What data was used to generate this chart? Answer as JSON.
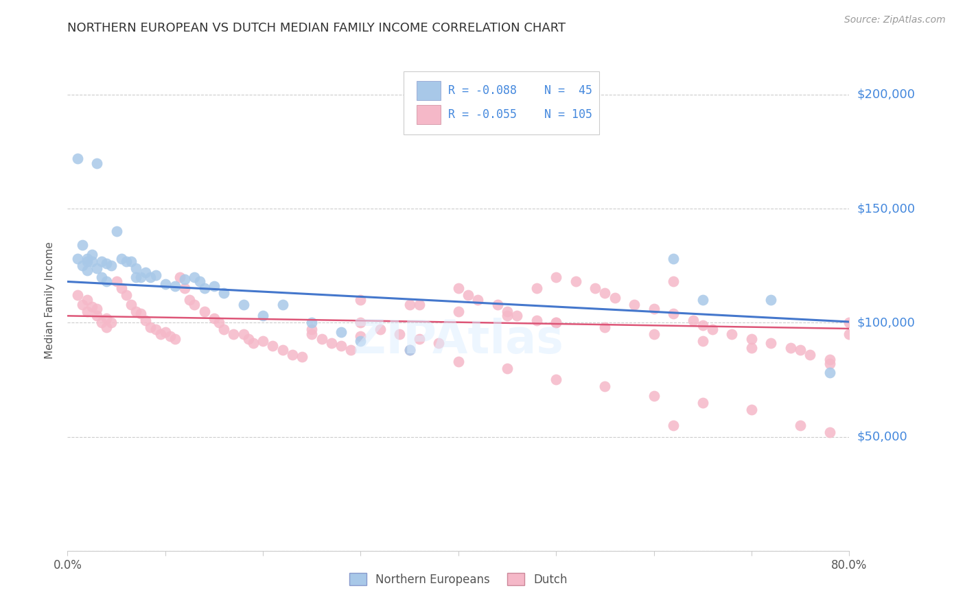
{
  "title": "NORTHERN EUROPEAN VS DUTCH MEDIAN FAMILY INCOME CORRELATION CHART",
  "source": "Source: ZipAtlas.com",
  "ylabel": "Median Family Income",
  "xmin": 0.0,
  "xmax": 0.8,
  "ymin": 0,
  "ymax": 220000,
  "yticks": [
    0,
    50000,
    100000,
    150000,
    200000
  ],
  "ytick_labels": [
    "",
    "$50,000",
    "$100,000",
    "$150,000",
    "$200,000"
  ],
  "xticks": [
    0.0,
    0.1,
    0.2,
    0.3,
    0.4,
    0.5,
    0.6,
    0.7,
    0.8
  ],
  "xtick_labels": [
    "0.0%",
    "",
    "",
    "",
    "",
    "",
    "",
    "",
    "80.0%"
  ],
  "blue_color": "#a8c8e8",
  "pink_color": "#f5b8c8",
  "blue_line_color": "#4477cc",
  "pink_line_color": "#dd5577",
  "label_color": "#4488dd",
  "grid_color": "#cccccc",
  "legend_r_blue": "R = -0.088",
  "legend_n_blue": "N =  45",
  "legend_r_pink": "R = -0.055",
  "legend_n_pink": "N = 105",
  "blue_label": "Northern Europeans",
  "pink_label": "Dutch",
  "blue_intercept": 118000,
  "blue_slope": -22000,
  "pink_intercept": 103000,
  "pink_slope": -7000,
  "blue_x": [
    0.01,
    0.03,
    0.01,
    0.015,
    0.02,
    0.025,
    0.02,
    0.035,
    0.04,
    0.015,
    0.02,
    0.025,
    0.03,
    0.035,
    0.04,
    0.045,
    0.05,
    0.055,
    0.06,
    0.065,
    0.07,
    0.07,
    0.075,
    0.08,
    0.085,
    0.09,
    0.1,
    0.11,
    0.12,
    0.13,
    0.135,
    0.14,
    0.15,
    0.16,
    0.18,
    0.2,
    0.22,
    0.25,
    0.28,
    0.3,
    0.35,
    0.62,
    0.65,
    0.72,
    0.78
  ],
  "blue_y": [
    172000,
    170000,
    128000,
    125000,
    127000,
    130000,
    123000,
    120000,
    118000,
    134000,
    128000,
    127000,
    124000,
    127000,
    126000,
    125000,
    140000,
    128000,
    127000,
    127000,
    120000,
    124000,
    120000,
    122000,
    120000,
    121000,
    117000,
    116000,
    119000,
    120000,
    118000,
    115000,
    116000,
    113000,
    108000,
    103000,
    108000,
    100000,
    96000,
    92000,
    88000,
    128000,
    110000,
    110000,
    78000
  ],
  "pink_x": [
    0.01,
    0.015,
    0.02,
    0.02,
    0.025,
    0.03,
    0.03,
    0.035,
    0.04,
    0.04,
    0.045,
    0.05,
    0.055,
    0.06,
    0.065,
    0.07,
    0.075,
    0.08,
    0.085,
    0.09,
    0.095,
    0.1,
    0.105,
    0.11,
    0.115,
    0.12,
    0.125,
    0.13,
    0.14,
    0.15,
    0.155,
    0.16,
    0.17,
    0.18,
    0.185,
    0.19,
    0.2,
    0.21,
    0.22,
    0.23,
    0.24,
    0.25,
    0.26,
    0.27,
    0.28,
    0.29,
    0.3,
    0.32,
    0.34,
    0.36,
    0.36,
    0.38,
    0.4,
    0.41,
    0.42,
    0.44,
    0.45,
    0.46,
    0.48,
    0.48,
    0.5,
    0.5,
    0.52,
    0.54,
    0.55,
    0.56,
    0.58,
    0.6,
    0.62,
    0.62,
    0.64,
    0.65,
    0.66,
    0.68,
    0.7,
    0.72,
    0.74,
    0.75,
    0.76,
    0.78,
    0.78,
    0.3,
    0.35,
    0.4,
    0.45,
    0.5,
    0.55,
    0.6,
    0.65,
    0.7,
    0.25,
    0.3,
    0.35,
    0.4,
    0.45,
    0.5,
    0.55,
    0.6,
    0.65,
    0.7,
    0.75,
    0.78,
    0.8,
    0.8,
    0.62
  ],
  "pink_y": [
    112000,
    108000,
    110000,
    105000,
    107000,
    103000,
    106000,
    100000,
    102000,
    98000,
    100000,
    118000,
    115000,
    112000,
    108000,
    105000,
    104000,
    101000,
    98000,
    97000,
    95000,
    96000,
    94000,
    93000,
    120000,
    115000,
    110000,
    108000,
    105000,
    102000,
    100000,
    97000,
    95000,
    95000,
    93000,
    91000,
    92000,
    90000,
    88000,
    86000,
    85000,
    95000,
    93000,
    91000,
    90000,
    88000,
    100000,
    97000,
    95000,
    93000,
    108000,
    91000,
    115000,
    112000,
    110000,
    108000,
    105000,
    103000,
    101000,
    115000,
    100000,
    120000,
    118000,
    115000,
    113000,
    111000,
    108000,
    106000,
    104000,
    118000,
    101000,
    99000,
    97000,
    95000,
    93000,
    91000,
    89000,
    88000,
    86000,
    84000,
    82000,
    110000,
    108000,
    105000,
    103000,
    100000,
    98000,
    95000,
    92000,
    89000,
    97000,
    94000,
    88000,
    83000,
    80000,
    75000,
    72000,
    68000,
    65000,
    62000,
    55000,
    52000,
    100000,
    95000,
    55000
  ]
}
